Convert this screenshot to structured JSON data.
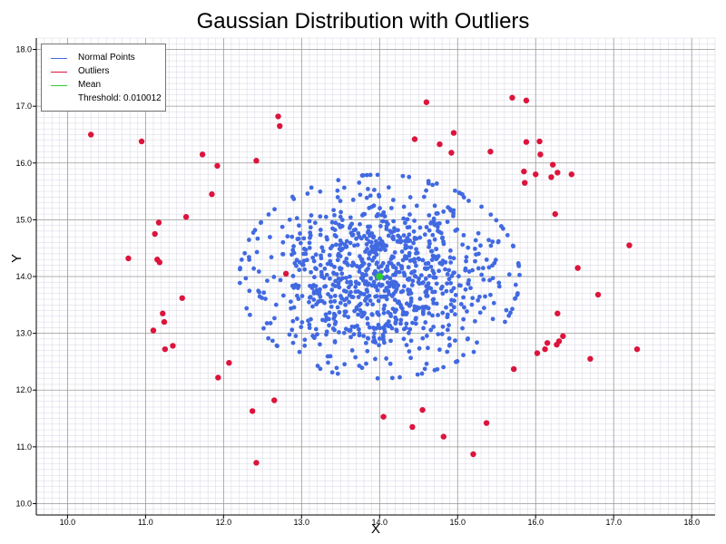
{
  "chart_data": {
    "type": "scatter",
    "title": "Gaussian Distribution with Outliers",
    "xlabel": "X",
    "ylabel": "Y",
    "xlim": [
      9.6,
      18.3
    ],
    "ylim": [
      9.8,
      18.2
    ],
    "xticks": [
      "10.0",
      "11.0",
      "12.0",
      "13.0",
      "14.0",
      "15.0",
      "16.0",
      "17.0",
      "18.0"
    ],
    "yticks": [
      "10.0",
      "11.0",
      "12.0",
      "13.0",
      "14.0",
      "15.0",
      "16.0",
      "17.0",
      "18.0"
    ],
    "grid": true,
    "minor_grid": true,
    "legend_position": "top-left",
    "colors": {
      "normal": "#4169e1",
      "outlier": "#dc143c",
      "mean": "#32cd32"
    },
    "legend": [
      {
        "label": "Normal Points",
        "color": "#4169e1"
      },
      {
        "label": "Outliers",
        "color": "#dc143c"
      },
      {
        "label": "Mean",
        "color": "#32cd32"
      },
      {
        "label": "Threshold: 0.010012",
        "color": ""
      }
    ],
    "normal_points_note": "Approximately 1000 points sampled from a Gaussian centered near (14.0, 14.0) with standard deviation about 0.8",
    "normal_distribution": {
      "center": [
        14.0,
        14.0
      ],
      "std": [
        0.78,
        0.78
      ],
      "count": 1000
    },
    "mean": {
      "x": 14.0,
      "y": 14.0
    },
    "outliers": {
      "x": [
        10.3,
        10.95,
        11.12,
        11.17,
        11.15,
        11.18,
        11.1,
        11.22,
        11.25,
        11.24,
        11.35,
        11.47,
        11.52,
        11.73,
        11.85,
        11.92,
        11.93,
        12.07,
        12.37,
        12.42,
        12.42,
        12.65,
        12.7,
        12.72,
        12.8,
        14.05,
        14.42,
        14.45,
        14.55,
        14.6,
        14.77,
        14.82,
        14.92,
        14.95,
        15.2,
        15.37,
        15.42,
        15.7,
        15.72,
        15.85,
        15.86,
        15.88,
        15.88,
        16.0,
        16.02,
        16.05,
        16.06,
        16.12,
        16.15,
        16.2,
        16.22,
        16.25,
        16.27,
        16.28,
        16.28,
        16.3,
        16.35,
        16.46,
        16.54,
        16.7,
        16.8,
        17.2,
        17.3,
        10.78
      ],
      "y": [
        16.5,
        16.38,
        14.75,
        14.95,
        14.3,
        14.25,
        13.05,
        13.35,
        12.72,
        13.2,
        12.78,
        13.62,
        15.05,
        16.15,
        15.45,
        15.95,
        12.22,
        12.48,
        11.63,
        16.04,
        10.72,
        11.82,
        16.82,
        16.65,
        14.05,
        11.53,
        11.35,
        16.42,
        11.65,
        17.07,
        16.33,
        11.18,
        16.18,
        16.53,
        10.87,
        11.42,
        16.2,
        17.15,
        12.37,
        15.85,
        15.65,
        17.1,
        16.37,
        15.8,
        12.65,
        16.38,
        16.15,
        12.72,
        12.83,
        15.75,
        15.97,
        15.1,
        12.8,
        15.83,
        13.35,
        12.86,
        12.95,
        15.8,
        14.15,
        12.55,
        13.68,
        14.55,
        12.72,
        14.32
      ]
    }
  }
}
